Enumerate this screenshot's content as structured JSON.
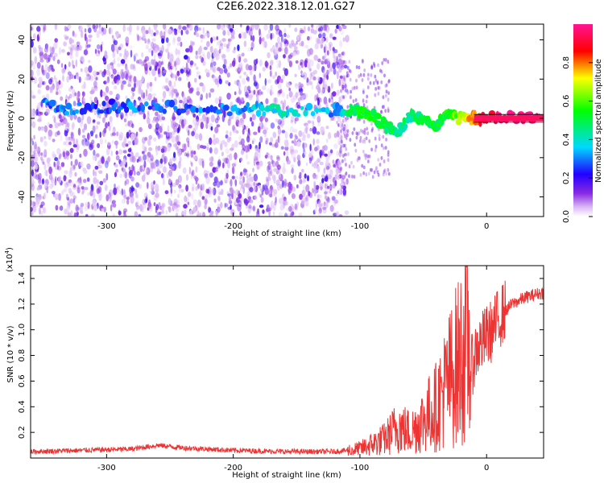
{
  "title": "C2E6.2022.318.12.01.G27",
  "chart_data": [
    {
      "type": "heatmap",
      "xlabel": "Height of straight line (km)",
      "ylabel": "Frequency (Hz)",
      "xlim": [
        -360,
        45
      ],
      "ylim": [
        -50,
        48
      ],
      "xticks": [
        -300,
        -200,
        -100,
        0
      ],
      "yticks": [
        -40,
        -20,
        0,
        20,
        40
      ],
      "colorbar": {
        "label": "Normalized spectral amplitude",
        "range": [
          0,
          1
        ],
        "ticks": [
          0.0,
          0.2,
          0.4,
          0.6,
          0.8
        ],
        "colors": [
          "#ffffff",
          "#d9b8f5",
          "#8a2be2",
          "#2200ff",
          "#00d8ff",
          "#00ff00",
          "#ffff00",
          "#ff0000",
          "#ff1493"
        ]
      },
      "signal_track": [
        {
          "x": -350,
          "y": 7,
          "amp": 0.3
        },
        {
          "x": -330,
          "y": 5,
          "amp": 0.28
        },
        {
          "x": -300,
          "y": 6,
          "amp": 0.25
        },
        {
          "x": -280,
          "y": 6,
          "amp": 0.3
        },
        {
          "x": -240,
          "y": 5,
          "amp": 0.28
        },
        {
          "x": -200,
          "y": 4,
          "amp": 0.3
        },
        {
          "x": -180,
          "y": 5,
          "amp": 0.35
        },
        {
          "x": -160,
          "y": 4,
          "amp": 0.4
        },
        {
          "x": -120,
          "y": 4,
          "amp": 0.3
        },
        {
          "x": -105,
          "y": 4,
          "amp": 0.5
        },
        {
          "x": -90,
          "y": 2,
          "amp": 0.55
        },
        {
          "x": -80,
          "y": -4,
          "amp": 0.5
        },
        {
          "x": -70,
          "y": -8,
          "amp": 0.45
        },
        {
          "x": -60,
          "y": 2,
          "amp": 0.45
        },
        {
          "x": -50,
          "y": 0,
          "amp": 0.5
        },
        {
          "x": -40,
          "y": -3,
          "amp": 0.5
        },
        {
          "x": -30,
          "y": 2,
          "amp": 0.55
        },
        {
          "x": -20,
          "y": 0,
          "amp": 0.65
        },
        {
          "x": -10,
          "y": 0,
          "amp": 0.8
        },
        {
          "x": 0,
          "y": 0,
          "amp": 0.95
        },
        {
          "x": 20,
          "y": 0,
          "amp": 1.0
        },
        {
          "x": 45,
          "y": 0,
          "amp": 1.0
        }
      ]
    },
    {
      "type": "line",
      "xlabel": "Height of straight line (km)",
      "ylabel": "SNR (10 * v/v)",
      "y_multiplier": "(x10",
      "y_multiplier_exp": "4",
      "y_multiplier_close": ")",
      "xlim": [
        -360,
        45
      ],
      "ylim": [
        0,
        15000
      ],
      "xticks": [
        -300,
        -200,
        -100,
        0
      ],
      "yticks": [
        2000,
        4000,
        6000,
        8000,
        10000,
        12000,
        14000
      ],
      "ytick_labels": [
        "0.2",
        "0.4",
        "0.6",
        "0.8",
        "1.0",
        "1.2",
        "1.4"
      ],
      "color": "#ee3333",
      "series": [
        {
          "x": [
            -360,
            -320,
            -280,
            -260,
            -240,
            -200,
            -160,
            -120,
            -100,
            -80,
            -70,
            -60,
            -50,
            -40,
            -35,
            -30,
            -25,
            -20,
            -15,
            -12,
            -8,
            -4,
            0,
            5,
            10,
            20,
            30,
            40,
            45
          ],
          "y": [
            500,
            600,
            700,
            1000,
            800,
            600,
            500,
            500,
            700,
            1500,
            2500,
            2000,
            3000,
            4000,
            5000,
            6000,
            7000,
            8000,
            9000,
            7000,
            8500,
            9000,
            9500,
            10000,
            11000,
            12000,
            12500,
            12800,
            12900
          ]
        }
      ]
    }
  ]
}
